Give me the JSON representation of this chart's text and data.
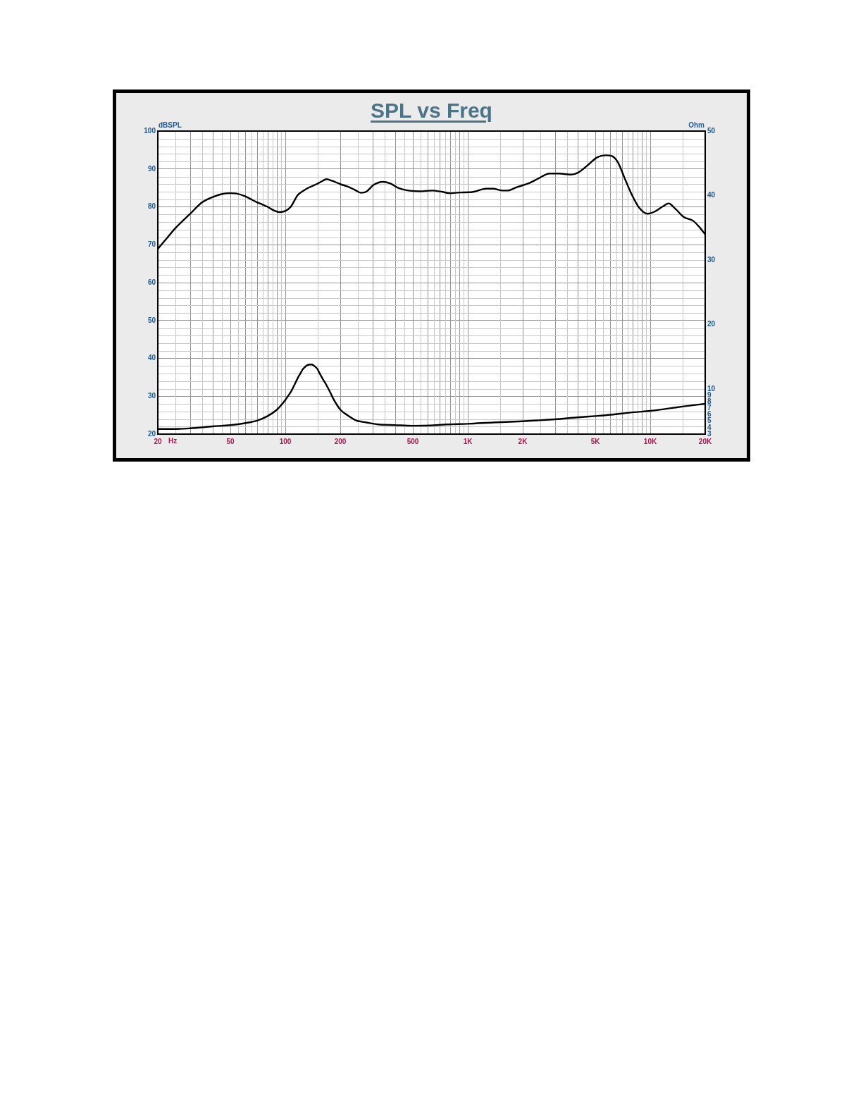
{
  "chart_data": {
    "type": "line",
    "title": "SPL vs Freq",
    "xlabel": "Hz",
    "ylabel": "dBSPL",
    "y2label": "Ohm",
    "log": "x",
    "grid": true,
    "xlim": [
      20,
      20000
    ],
    "xticks": [
      20,
      {
        "value": 25,
        "label": null
      },
      {
        "value": 30,
        "label": null
      },
      {
        "value": 35,
        "label": null
      },
      {
        "value": 40,
        "label": null
      },
      {
        "value": 45,
        "label": null
      },
      50,
      {
        "value": 55,
        "label": null
      },
      {
        "value": 60,
        "label": null
      },
      {
        "value": 65,
        "label": null
      },
      {
        "value": 70,
        "label": null
      },
      {
        "value": 75,
        "label": null
      },
      {
        "value": 80,
        "label": null
      },
      {
        "value": 85,
        "label": null
      },
      {
        "value": 90,
        "label": null
      },
      {
        "value": 95,
        "label": null
      },
      100,
      {
        "value": 150,
        "label": null
      },
      200,
      {
        "value": 250,
        "label": null
      },
      {
        "value": 300,
        "label": null
      },
      {
        "value": 350,
        "label": null
      },
      {
        "value": 400,
        "label": null
      },
      {
        "value": 450,
        "label": null
      },
      500,
      {
        "value": 550,
        "label": null
      },
      {
        "value": 600,
        "label": null
      },
      {
        "value": 650,
        "label": null
      },
      {
        "value": 700,
        "label": null
      },
      {
        "value": 750,
        "label": null
      },
      {
        "value": 800,
        "label": null
      },
      {
        "value": 850,
        "label": null
      },
      {
        "value": 900,
        "label": null
      },
      {
        "value": 950,
        "label": null
      },
      {
        "value": 1000,
        "label": "1K"
      },
      {
        "value": 1500,
        "label": null
      },
      {
        "value": 2000,
        "label": "2K"
      },
      {
        "value": 2500,
        "label": null
      },
      {
        "value": 3000,
        "label": null
      },
      {
        "value": 3500,
        "label": null
      },
      {
        "value": 4000,
        "label": null
      },
      {
        "value": 4500,
        "label": null
      },
      {
        "value": 5000,
        "label": "5K"
      },
      {
        "value": 5500,
        "label": null
      },
      {
        "value": 6000,
        "label": null
      },
      {
        "value": 6500,
        "label": null
      },
      {
        "value": 7000,
        "label": null
      },
      {
        "value": 7500,
        "label": null
      },
      {
        "value": 8000,
        "label": null
      },
      {
        "value": 8500,
        "label": null
      },
      {
        "value": 9000,
        "label": null
      },
      {
        "value": 9500,
        "label": null
      },
      {
        "value": 10000,
        "label": "10K"
      },
      {
        "value": 15000,
        "label": null
      },
      {
        "value": 20000,
        "label": "20K"
      }
    ],
    "ylim": [
      20,
      100
    ],
    "yticks": [
      20,
      {
        "value": 22,
        "label": null
      },
      {
        "value": 24,
        "label": null
      },
      {
        "value": 26,
        "label": null
      },
      {
        "value": 28,
        "label": null
      },
      30,
      {
        "value": 32,
        "label": null
      },
      {
        "value": 34,
        "label": null
      },
      {
        "value": 36,
        "label": null
      },
      {
        "value": 38,
        "label": null
      },
      40,
      {
        "value": 42,
        "label": null
      },
      {
        "value": 44,
        "label": null
      },
      {
        "value": 46,
        "label": null
      },
      {
        "value": 48,
        "label": null
      },
      50,
      {
        "value": 52,
        "label": null
      },
      {
        "value": 54,
        "label": null
      },
      {
        "value": 56,
        "label": null
      },
      {
        "value": 58,
        "label": null
      },
      60,
      {
        "value": 62,
        "label": null
      },
      {
        "value": 64,
        "label": null
      },
      {
        "value": 66,
        "label": null
      },
      {
        "value": 68,
        "label": null
      },
      70,
      {
        "value": 72,
        "label": null
      },
      {
        "value": 74,
        "label": null
      },
      {
        "value": 76,
        "label": null
      },
      {
        "value": 78,
        "label": null
      },
      80,
      {
        "value": 82,
        "label": null
      },
      {
        "value": 84,
        "label": null
      },
      {
        "value": 86,
        "label": null
      },
      {
        "value": 88,
        "label": null
      },
      90,
      {
        "value": 92,
        "label": null
      },
      {
        "value": 94,
        "label": null
      },
      {
        "value": 96,
        "label": null
      },
      {
        "value": 98,
        "label": null
      },
      100
    ],
    "y2lim": [
      3,
      50
    ],
    "y2ticks": [
      3,
      4,
      5,
      6,
      7,
      8,
      9,
      10,
      20,
      30,
      40,
      50
    ],
    "series": [
      {
        "color": "#000000",
        "x": [
          20,
          22.3,
          25,
          30,
          35,
          40,
          45,
          50,
          54,
          60,
          70,
          75,
          80,
          87,
          93,
          100,
          107,
          117,
          125,
          136,
          147,
          158,
          168,
          180,
          200,
          218,
          240,
          260,
          278,
          303,
          342,
          374,
          420,
          472,
          548,
          636,
          718,
          796,
          906,
          1056,
          1260,
          1376,
          1554,
          1648,
          1856,
          2154,
          2420,
          2805,
          3160,
          3674,
          4010,
          4520,
          5093,
          5732,
          6080,
          6640,
          7260,
          7940,
          8680,
          9640,
          10540,
          11700,
          12600,
          13770,
          15270,
          17180,
          18780,
          20000
        ],
        "values": [
          68.9,
          71.6,
          74.4,
          78.1,
          81.2,
          82.6,
          83.4,
          83.6,
          83.5,
          82.8,
          81.2,
          80.6,
          80.0,
          79.0,
          78.6,
          78.9,
          80.0,
          83.1,
          84.2,
          85.2,
          85.9,
          86.7,
          87.3,
          86.9,
          86.0,
          85.4,
          84.5,
          83.7,
          84.0,
          85.7,
          86.6,
          86.2,
          84.9,
          84.3,
          84.1,
          84.3,
          84.0,
          83.6,
          83.8,
          83.9,
          84.8,
          84.8,
          84.3,
          84.3,
          85.2,
          86.2,
          87.4,
          88.8,
          88.8,
          88.5,
          89.0,
          90.9,
          93.0,
          93.6,
          93.5,
          91.8,
          87.4,
          83.1,
          79.8,
          78.2,
          78.7,
          80.1,
          80.9,
          79.4,
          77.3,
          76.3,
          74.4,
          72.7
        ]
      },
      {
        "color": "#000000",
        "axis": "y2",
        "x": [
          20,
          25,
          30,
          40,
          50,
          60,
          70,
          80,
          90,
          95,
          100,
          104,
          108,
          112,
          117,
          122,
          125,
          132,
          137,
          140,
          145,
          150,
          153,
          160,
          168,
          176,
          183,
          200,
          220,
          246,
          278,
          322,
          397,
          500,
          676,
          762,
          1000,
          1376,
          2000,
          3000,
          4000,
          5000,
          6080,
          8160,
          10000,
          12780,
          15270,
          20000
        ],
        "values": [
          3.8,
          3.8,
          3.9,
          4.2,
          4.4,
          4.7,
          5.1,
          5.8,
          6.8,
          7.5,
          8.3,
          9.0,
          9.7,
          10.6,
          11.7,
          12.6,
          13.1,
          13.7,
          13.8,
          13.8,
          13.5,
          13.1,
          12.6,
          11.6,
          10.6,
          9.5,
          8.5,
          6.8,
          5.9,
          5.1,
          4.8,
          4.5,
          4.4,
          4.3,
          4.4,
          4.5,
          4.6,
          4.8,
          5.0,
          5.3,
          5.6,
          5.8,
          6.0,
          6.4,
          6.6,
          7.0,
          7.3,
          7.7
        ]
      }
    ]
  }
}
